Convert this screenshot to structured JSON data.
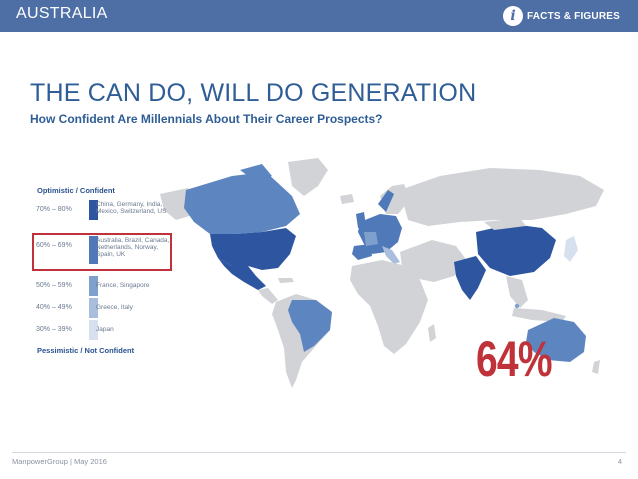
{
  "header": {
    "country": "AUSTRALIA",
    "facts_icon": "info-icon",
    "facts_label": "FACTS & FIGURES",
    "bar_color": "#4d6fa6"
  },
  "title": "THE CAN DO, WILL DO GENERATION",
  "subtitle": "How Confident Are Millennials About Their Career Prospects?",
  "legend": {
    "top_label": "Optimistic / Confident",
    "bottom_label": "Pessimistic / Not Confident",
    "rows": [
      {
        "range": "70% – 80%",
        "countries": "China, Germany, India, Mexico, Switzerland, US",
        "color": "#2e55a0"
      },
      {
        "range": "60% – 69%",
        "countries": "Australia, Brazil, Canada, Netherlands, Norway, Spain, UK",
        "color": "#4f79b9",
        "highlighted": true
      },
      {
        "range": "50% – 59%",
        "countries": "France, Singapore",
        "color": "#7f9fcc"
      },
      {
        "range": "40% – 49%",
        "countries": "Greece, Italy",
        "color": "#a9bddd"
      },
      {
        "range": "30% – 39%",
        "countries": "Japan",
        "color": "#d6e0ef"
      }
    ],
    "highlight_color": "#c0323a"
  },
  "highlight_value": "64%",
  "map": {
    "land_color": "#d1d3d6",
    "australia_color": "#5d86c1",
    "brazil_color": "#5d86c1",
    "us_color": "#2e55a0",
    "canada_color": "#5d86c1",
    "mexico_color": "#2e55a0",
    "china_color": "#2e55a0",
    "india_color": "#2e55a0",
    "japan_color": "#d6e0ef",
    "europe_color": "#4f79b9",
    "singapore_color": "#7f9fcc"
  },
  "footer": {
    "text": "ManpowerGroup  |  May 2016",
    "page": "4"
  }
}
